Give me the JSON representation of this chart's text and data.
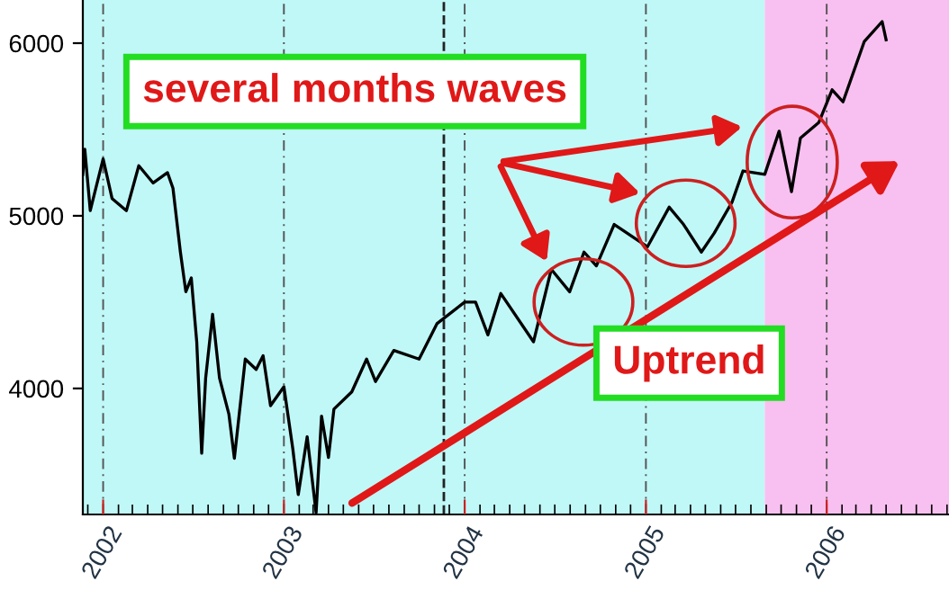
{
  "chart_data": {
    "type": "line",
    "x": [
      "2001-11-21",
      "2001-11-25",
      "2001-12-06",
      "2002-01-01",
      "2002-01-19",
      "2002-02-17",
      "2002-03-14",
      "2002-04-12",
      "2002-05-11",
      "2002-05-22",
      "2002-06-06",
      "2002-06-17",
      "2002-06-28",
      "2002-07-09",
      "2002-07-19",
      "2002-07-27",
      "2002-08-10",
      "2002-08-24",
      "2002-09-12",
      "2002-09-23",
      "2002-10-15",
      "2002-11-06",
      "2002-11-20",
      "2002-12-05",
      "2003-01-01",
      "2003-01-19",
      "2003-01-30",
      "2003-02-17",
      "2003-03-07",
      "2003-03-18",
      "2003-04-01",
      "2003-04-12",
      "2003-05-18",
      "2003-06-17",
      "2003-07-05",
      "2003-08-11",
      "2003-10-01",
      "2003-11-06",
      "2004-01-01",
      "2004-01-23",
      "2004-02-17",
      "2004-03-14",
      "2004-05-19",
      "2004-06-06",
      "2004-06-24",
      "2004-07-31",
      "2004-08-29",
      "2004-09-23",
      "2004-10-29",
      "2005-01-04",
      "2005-02-17",
      "2005-03-18",
      "2005-04-23",
      "2005-05-19",
      "2005-06-24",
      "2005-07-16",
      "2005-08-29",
      "2005-09-27",
      "2005-10-22",
      "2005-11-09",
      "2005-12-16",
      "2006-01-12",
      "2006-02-03",
      "2006-03-18",
      "2006-04-23",
      "2006-05-01"
    ],
    "series": [
      {
        "color": "#000000",
        "values": [
          5240,
          5385,
          5030,
          5330,
          5100,
          5030,
          5290,
          5190,
          5250,
          5160,
          4790,
          4560,
          4640,
          4270,
          3625,
          4060,
          4430,
          4060,
          3850,
          3595,
          4170,
          4110,
          4190,
          3900,
          4010,
          3650,
          3385,
          3720,
          3280,
          3840,
          3600,
          3880,
          3980,
          4170,
          4040,
          4220,
          4170,
          4375,
          4500,
          4500,
          4310,
          4550,
          4270,
          4480,
          4690,
          4560,
          4790,
          4710,
          4950,
          4820,
          5050,
          4950,
          4790,
          4900,
          5080,
          5260,
          5240,
          5490,
          5140,
          5450,
          5540,
          5730,
          5660,
          6010,
          6125,
          6020
        ]
      }
    ],
    "xlim": [
      "2001-11-21",
      "2006-09-05"
    ],
    "ylim": [
      3270,
      6250
    ],
    "xticks": [
      {
        "value": "2002-01-01",
        "label": "2002"
      },
      {
        "value": "2003-01-01",
        "label": "2003"
      },
      {
        "value": "2004-01-01",
        "label": "2004"
      },
      {
        "value": "2005-01-01",
        "label": "2005"
      },
      {
        "value": "2006-01-01",
        "label": "2006"
      }
    ],
    "yticks": [
      4000,
      5000,
      6000
    ],
    "grid": "x",
    "legend": false,
    "marker": "none",
    "line_style": "solid",
    "bands": [
      {
        "axis": "x",
        "from": "2001-11-21",
        "to": "2005-08-29",
        "color": "#c0f8f8"
      },
      {
        "axis": "x",
        "from": "2005-08-29",
        "to": "2006-09-05",
        "color": "#f8c0f0"
      }
    ],
    "ref_lines": [
      {
        "axis": "x",
        "value": "2003-11-20",
        "line_style": "dashed"
      }
    ],
    "annotations": [
      "several months waves",
      "Uptrend"
    ]
  }
}
